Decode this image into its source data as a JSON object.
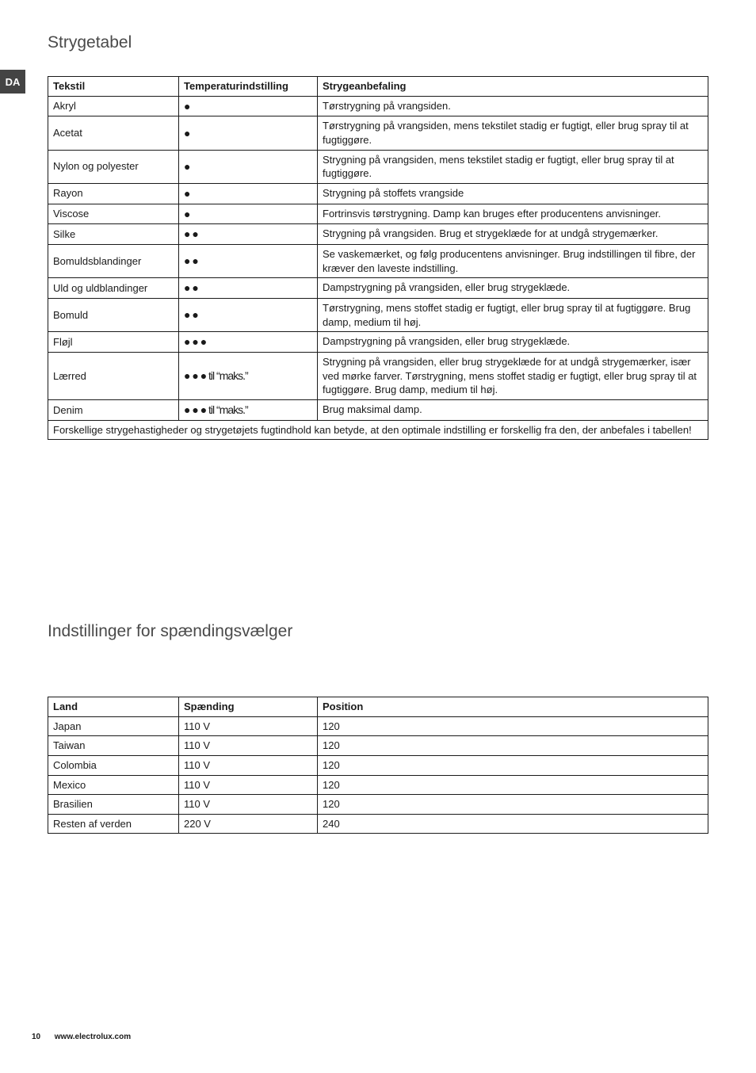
{
  "page": {
    "lang_tab": "DA",
    "title1": "Strygetabel",
    "title2": "Indstillinger for spændingsvælger",
    "footer_page": "10",
    "footer_url": "www.electrolux.com"
  },
  "dots": {
    "d1": "●",
    "d2": "● ●",
    "d3": "● ● ●",
    "d3_maks": "● ● ● til “maks.”"
  },
  "ironing_table": {
    "headers": [
      "Tekstil",
      "Temperaturindstilling",
      "Strygeanbefaling"
    ],
    "rows": [
      {
        "fabric": "Akryl",
        "temp_key": "d1",
        "rec": "Tørstrygning på vrangsiden."
      },
      {
        "fabric": "Acetat",
        "temp_key": "d1",
        "rec": "Tørstrygning på vrangsiden, mens tekstilet stadig er fugtigt, eller brug spray til at fugtiggøre."
      },
      {
        "fabric": "Nylon og polyester",
        "temp_key": "d1",
        "rec": "Strygning på vrangsiden, mens tekstilet stadig er fugtigt, eller brug spray til at fugtiggøre."
      },
      {
        "fabric": "Rayon",
        "temp_key": "d1",
        "rec": "Strygning på stoffets vrangside"
      },
      {
        "fabric": "Viscose",
        "temp_key": "d1",
        "rec": "Fortrinsvis tørstrygning. Damp kan bruges efter producentens anvisninger."
      },
      {
        "fabric": "Silke",
        "temp_key": "d2",
        "rec": "Strygning på vrangsiden. Brug et strygeklæde for at undgå strygemærker."
      },
      {
        "fabric": "Bomuldsblandinger",
        "temp_key": "d2",
        "rec": "Se vaskemærket, og følg producentens anvisninger. Brug indstillingen til fibre, der kræver den laveste indstilling."
      },
      {
        "fabric": "Uld og uldblandinger",
        "temp_key": "d2",
        "rec": "Dampstrygning på vrangsiden, eller brug strygeklæde."
      },
      {
        "fabric": "Bomuld",
        "temp_key": "d2",
        "rec": "Tørstrygning, mens stoffet stadig er fugtigt, eller brug spray til at fugtiggøre. Brug damp, medium til høj."
      },
      {
        "fabric": "Fløjl",
        "temp_key": "d3",
        "rec": "Dampstrygning på vrangsiden, eller brug strygeklæde."
      },
      {
        "fabric": "Lærred",
        "temp_key": "d3_maks",
        "rec": "Strygning på vrangsiden, eller brug strygeklæde for at undgå strygemærker, især ved mørke farver. Tørstrygning, mens stoffet stadig er fugtigt, eller brug spray til at fugtiggøre. Brug damp, medium til høj."
      },
      {
        "fabric": "Denim",
        "temp_key": "d3_maks",
        "rec": "Brug maksimal damp."
      }
    ],
    "footnote": "Forskellige strygehastigheder og strygetøjets fugtindhold kan betyde, at den optimale indstilling er forskellig fra den, der anbefales i tabellen!"
  },
  "voltage_table": {
    "headers": [
      "Land",
      "Spænding",
      "Position"
    ],
    "rows": [
      {
        "land": "Japan",
        "sp": "110 V",
        "pos": "120"
      },
      {
        "land": "Taiwan",
        "sp": "110 V",
        "pos": "120"
      },
      {
        "land": "Colombia",
        "sp": "110 V",
        "pos": "120"
      },
      {
        "land": "Mexico",
        "sp": "110 V",
        "pos": "120"
      },
      {
        "land": "Brasilien",
        "sp": "110 V",
        "pos": "120"
      },
      {
        "land": "Resten af verden",
        "sp": "220 V",
        "pos": "240"
      }
    ]
  }
}
